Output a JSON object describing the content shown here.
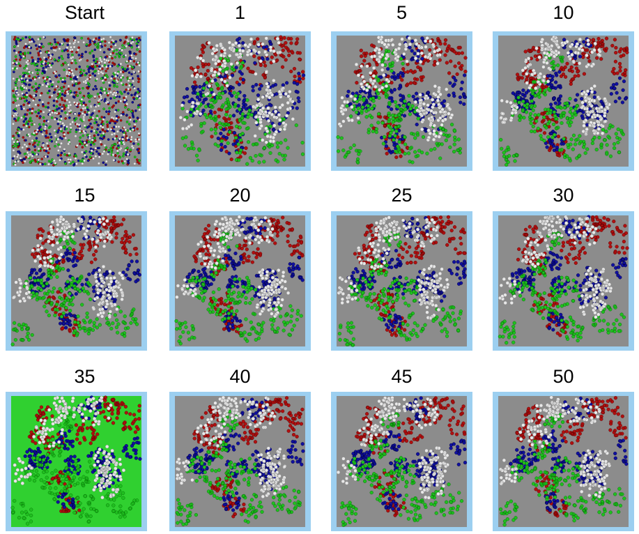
{
  "panels": [
    {
      "label": "Start"
    },
    {
      "label": "1"
    },
    {
      "label": "5"
    },
    {
      "label": "10"
    },
    {
      "label": "15"
    },
    {
      "label": "20"
    },
    {
      "label": "25"
    },
    {
      "label": "30"
    },
    {
      "label": "35"
    },
    {
      "label": "40"
    },
    {
      "label": "45"
    },
    {
      "label": "50"
    }
  ]
}
